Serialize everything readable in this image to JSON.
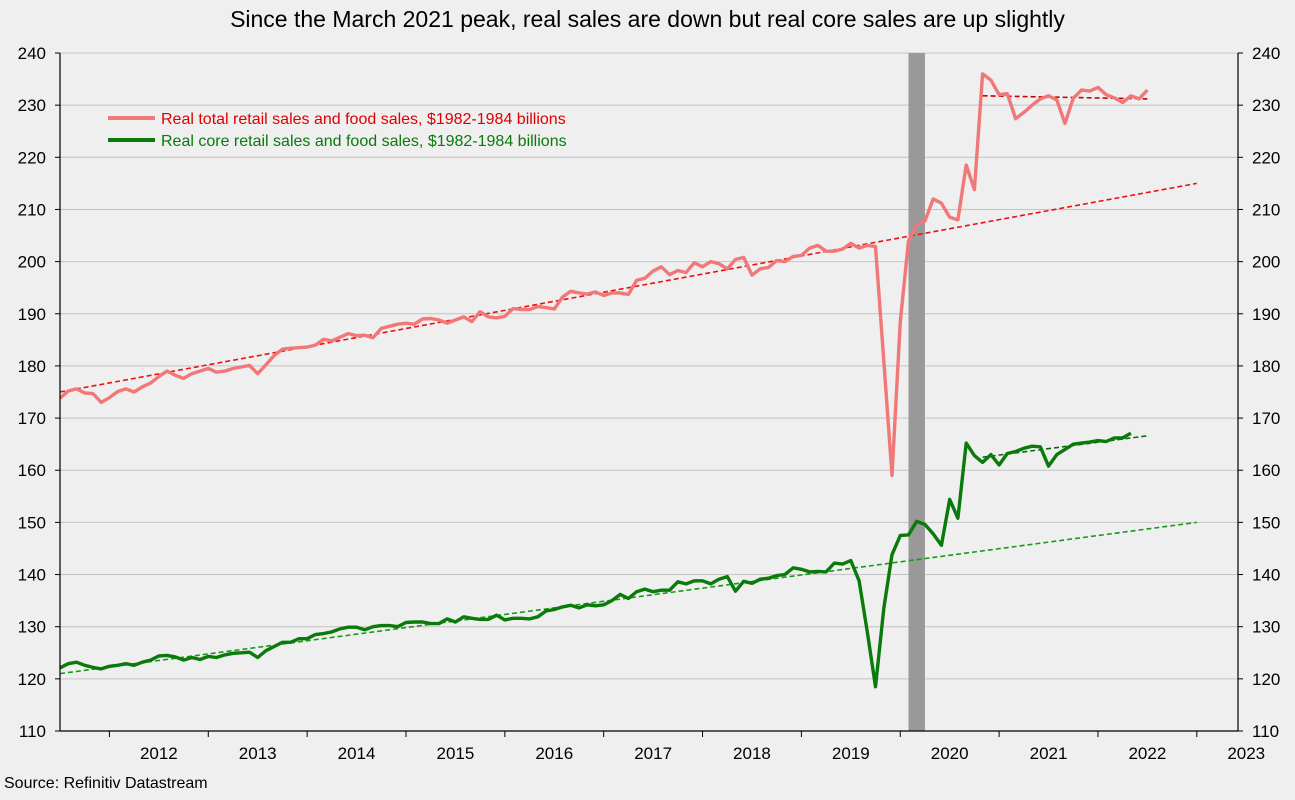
{
  "title": "Since the March 2021 peak, real sales are down but real core sales are up slightly",
  "source": "Source: Refinitiv Datastream",
  "chart_data": {
    "type": "line",
    "title": "Since the March 2021 peak, real sales are down but real core sales are up slightly",
    "ylim": [
      110,
      240
    ],
    "y_ticks": [
      110,
      120,
      130,
      140,
      150,
      160,
      170,
      180,
      190,
      200,
      210,
      220,
      230,
      240
    ],
    "x_tick_labels": [
      "2012",
      "2013",
      "2014",
      "2015",
      "2016",
      "2017",
      "2018",
      "2019",
      "2020",
      "2021",
      "2022",
      "2023"
    ],
    "x_range": [
      "2011-07",
      "2023-06"
    ],
    "grid": "horizontal",
    "legend_position": "top-left",
    "recession_shading": {
      "start": "2020-02",
      "end": "2020-04",
      "color": "#999999"
    },
    "colors": {
      "total": "#f07878",
      "core": "#0a7a0a",
      "total_trend": "#ee1111",
      "core_trend": "#1a9a1a",
      "recession": "#999999"
    },
    "series": [
      {
        "key": "total",
        "name": "Real total retail sales and food sales, $1982-1984 billions",
        "color": "#f07878",
        "points": [
          [
            "2011-07",
            173.8
          ],
          [
            "2011-08",
            175.2
          ],
          [
            "2011-09",
            175.6
          ],
          [
            "2011-10",
            174.8
          ],
          [
            "2011-11",
            174.7
          ],
          [
            "2011-12",
            173.0
          ],
          [
            "2012-01",
            173.9
          ],
          [
            "2012-02",
            175.1
          ],
          [
            "2012-03",
            175.6
          ],
          [
            "2012-04",
            175.0
          ],
          [
            "2012-05",
            176.0
          ],
          [
            "2012-06",
            176.7
          ],
          [
            "2012-07",
            178.0
          ],
          [
            "2012-08",
            179.0
          ],
          [
            "2012-09",
            178.2
          ],
          [
            "2012-10",
            177.6
          ],
          [
            "2012-11",
            178.5
          ],
          [
            "2012-12",
            179.0
          ],
          [
            "2013-01",
            179.5
          ],
          [
            "2013-02",
            178.8
          ],
          [
            "2013-03",
            179.0
          ],
          [
            "2013-04",
            179.5
          ],
          [
            "2013-05",
            179.8
          ],
          [
            "2013-06",
            180.1
          ],
          [
            "2013-07",
            178.5
          ],
          [
            "2013-08",
            180.2
          ],
          [
            "2013-09",
            182.0
          ],
          [
            "2013-10",
            183.2
          ],
          [
            "2013-11",
            183.4
          ],
          [
            "2013-12",
            183.5
          ],
          [
            "2014-01",
            183.6
          ],
          [
            "2014-02",
            184.0
          ],
          [
            "2014-03",
            185.1
          ],
          [
            "2014-04",
            184.8
          ],
          [
            "2014-05",
            185.5
          ],
          [
            "2014-06",
            186.2
          ],
          [
            "2014-07",
            185.8
          ],
          [
            "2014-08",
            185.9
          ],
          [
            "2014-09",
            185.4
          ],
          [
            "2014-10",
            187.2
          ],
          [
            "2014-11",
            187.6
          ],
          [
            "2014-12",
            188.0
          ],
          [
            "2015-01",
            188.2
          ],
          [
            "2015-02",
            188.0
          ],
          [
            "2015-03",
            189.0
          ],
          [
            "2015-04",
            189.1
          ],
          [
            "2015-05",
            188.8
          ],
          [
            "2015-06",
            188.2
          ],
          [
            "2015-07",
            188.8
          ],
          [
            "2015-08",
            189.4
          ],
          [
            "2015-09",
            188.5
          ],
          [
            "2015-10",
            190.4
          ],
          [
            "2015-11",
            189.4
          ],
          [
            "2015-12",
            189.2
          ],
          [
            "2016-01",
            189.5
          ],
          [
            "2016-02",
            191.0
          ],
          [
            "2016-03",
            190.8
          ],
          [
            "2016-04",
            190.8
          ],
          [
            "2016-05",
            191.4
          ],
          [
            "2016-06",
            191.2
          ],
          [
            "2016-07",
            190.9
          ],
          [
            "2016-08",
            193.2
          ],
          [
            "2016-09",
            194.3
          ],
          [
            "2016-10",
            194.0
          ],
          [
            "2016-11",
            193.8
          ],
          [
            "2016-12",
            194.2
          ],
          [
            "2017-01",
            193.5
          ],
          [
            "2017-02",
            194.0
          ],
          [
            "2017-03",
            194.0
          ],
          [
            "2017-04",
            193.7
          ],
          [
            "2017-05",
            196.4
          ],
          [
            "2017-06",
            196.8
          ],
          [
            "2017-07",
            198.2
          ],
          [
            "2017-08",
            199.0
          ],
          [
            "2017-09",
            197.5
          ],
          [
            "2017-10",
            198.3
          ],
          [
            "2017-11",
            197.9
          ],
          [
            "2017-12",
            199.8
          ],
          [
            "2018-01",
            199.0
          ],
          [
            "2018-02",
            200.0
          ],
          [
            "2018-03",
            199.6
          ],
          [
            "2018-04",
            198.6
          ],
          [
            "2018-05",
            200.4
          ],
          [
            "2018-06",
            200.8
          ],
          [
            "2018-07",
            197.4
          ],
          [
            "2018-08",
            198.6
          ],
          [
            "2018-09",
            198.9
          ],
          [
            "2018-10",
            200.2
          ],
          [
            "2018-11",
            200.0
          ],
          [
            "2018-12",
            201.0
          ],
          [
            "2019-01",
            201.2
          ],
          [
            "2019-02",
            202.6
          ],
          [
            "2019-03",
            203.1
          ],
          [
            "2019-04",
            202.0
          ],
          [
            "2019-05",
            202.0
          ],
          [
            "2019-06",
            202.4
          ],
          [
            "2019-07",
            203.5
          ],
          [
            "2019-08",
            202.6
          ],
          [
            "2019-09",
            203.1
          ],
          [
            "2019-10",
            202.9
          ],
          [
            "2019-11",
            181.0
          ],
          [
            "2019-12",
            159.0
          ],
          [
            "2020-01",
            188.5
          ],
          [
            "2020-02",
            204.0
          ],
          [
            "2020-03",
            207.0
          ],
          [
            "2020-04",
            207.8
          ],
          [
            "2020-05",
            212.0
          ],
          [
            "2020-06",
            211.2
          ],
          [
            "2020-07",
            208.5
          ],
          [
            "2020-08",
            208.0
          ],
          [
            "2020-09",
            218.5
          ],
          [
            "2020-10",
            213.8
          ],
          [
            "2020-11",
            236.0
          ],
          [
            "2020-12",
            234.8
          ],
          [
            "2021-01",
            232.0
          ],
          [
            "2021-02",
            232.2
          ],
          [
            "2021-03",
            227.4
          ],
          [
            "2021-04",
            228.6
          ],
          [
            "2021-05",
            230.0
          ],
          [
            "2021-06",
            231.2
          ],
          [
            "2021-07",
            231.8
          ],
          [
            "2021-08",
            231.0
          ],
          [
            "2021-09",
            226.5
          ],
          [
            "2021-10",
            231.3
          ],
          [
            "2021-11",
            232.9
          ],
          [
            "2021-12",
            232.7
          ],
          [
            "2022-01",
            233.4
          ],
          [
            "2022-02",
            232.0
          ],
          [
            "2022-03",
            231.4
          ],
          [
            "2022-04",
            230.5
          ],
          [
            "2022-05",
            231.8
          ],
          [
            "2022-06",
            231.2
          ],
          [
            "2022-07",
            232.9
          ]
        ]
      },
      {
        "key": "core",
        "name": "Real core retail sales and food sales, $1982-1984 billions",
        "color": "#0a7a0a",
        "points": [
          [
            "2011-07",
            122.1
          ],
          [
            "2011-08",
            122.9
          ],
          [
            "2011-09",
            123.2
          ],
          [
            "2011-10",
            122.6
          ],
          [
            "2011-11",
            122.2
          ],
          [
            "2011-12",
            121.9
          ],
          [
            "2012-01",
            122.4
          ],
          [
            "2012-02",
            122.6
          ],
          [
            "2012-03",
            122.9
          ],
          [
            "2012-04",
            122.6
          ],
          [
            "2012-05",
            123.2
          ],
          [
            "2012-06",
            123.6
          ],
          [
            "2012-07",
            124.4
          ],
          [
            "2012-08",
            124.5
          ],
          [
            "2012-09",
            124.2
          ],
          [
            "2012-10",
            123.6
          ],
          [
            "2012-11",
            124.1
          ],
          [
            "2012-12",
            123.7
          ],
          [
            "2013-01",
            124.3
          ],
          [
            "2013-02",
            124.1
          ],
          [
            "2013-03",
            124.6
          ],
          [
            "2013-04",
            124.9
          ],
          [
            "2013-05",
            125.0
          ],
          [
            "2013-06",
            125.1
          ],
          [
            "2013-07",
            124.1
          ],
          [
            "2013-08",
            125.4
          ],
          [
            "2013-09",
            126.2
          ],
          [
            "2013-10",
            127.0
          ],
          [
            "2013-11",
            127.0
          ],
          [
            "2013-12",
            127.7
          ],
          [
            "2014-01",
            127.7
          ],
          [
            "2014-02",
            128.5
          ],
          [
            "2014-03",
            128.7
          ],
          [
            "2014-04",
            129.0
          ],
          [
            "2014-05",
            129.6
          ],
          [
            "2014-06",
            129.9
          ],
          [
            "2014-07",
            129.9
          ],
          [
            "2014-08",
            129.4
          ],
          [
            "2014-09",
            130.0
          ],
          [
            "2014-10",
            130.2
          ],
          [
            "2014-11",
            130.2
          ],
          [
            "2014-12",
            130.0
          ],
          [
            "2015-01",
            130.8
          ],
          [
            "2015-02",
            130.9
          ],
          [
            "2015-03",
            130.9
          ],
          [
            "2015-04",
            130.6
          ],
          [
            "2015-05",
            130.6
          ],
          [
            "2015-06",
            131.5
          ],
          [
            "2015-07",
            130.9
          ],
          [
            "2015-08",
            131.9
          ],
          [
            "2015-09",
            131.6
          ],
          [
            "2015-10",
            131.4
          ],
          [
            "2015-11",
            131.4
          ],
          [
            "2015-12",
            132.2
          ],
          [
            "2016-01",
            131.3
          ],
          [
            "2016-02",
            131.6
          ],
          [
            "2016-03",
            131.6
          ],
          [
            "2016-04",
            131.5
          ],
          [
            "2016-05",
            131.9
          ],
          [
            "2016-06",
            133.0
          ],
          [
            "2016-07",
            133.3
          ],
          [
            "2016-08",
            133.8
          ],
          [
            "2016-09",
            134.1
          ],
          [
            "2016-10",
            133.6
          ],
          [
            "2016-11",
            134.2
          ],
          [
            "2016-12",
            134.0
          ],
          [
            "2017-01",
            134.2
          ],
          [
            "2017-02",
            135.0
          ],
          [
            "2017-03",
            136.2
          ],
          [
            "2017-04",
            135.4
          ],
          [
            "2017-05",
            136.7
          ],
          [
            "2017-06",
            137.2
          ],
          [
            "2017-07",
            136.7
          ],
          [
            "2017-08",
            137.0
          ],
          [
            "2017-09",
            137.0
          ],
          [
            "2017-10",
            138.6
          ],
          [
            "2017-11",
            138.2
          ],
          [
            "2017-12",
            138.8
          ],
          [
            "2018-01",
            138.8
          ],
          [
            "2018-02",
            138.2
          ],
          [
            "2018-03",
            139.1
          ],
          [
            "2018-04",
            139.6
          ],
          [
            "2018-05",
            136.8
          ],
          [
            "2018-06",
            138.7
          ],
          [
            "2018-07",
            138.3
          ],
          [
            "2018-08",
            139.1
          ],
          [
            "2018-09",
            139.3
          ],
          [
            "2018-10",
            139.8
          ],
          [
            "2018-11",
            140.0
          ],
          [
            "2018-12",
            141.3
          ],
          [
            "2019-01",
            141.0
          ],
          [
            "2019-02",
            140.5
          ],
          [
            "2019-03",
            140.6
          ],
          [
            "2019-04",
            140.5
          ],
          [
            "2019-05",
            142.2
          ],
          [
            "2019-06",
            142.0
          ],
          [
            "2019-07",
            142.7
          ],
          [
            "2019-08",
            138.8
          ],
          [
            "2019-09",
            129.0
          ],
          [
            "2019-10",
            118.5
          ],
          [
            "2019-11",
            133.5
          ],
          [
            "2019-12",
            143.8
          ],
          [
            "2020-01",
            147.5
          ],
          [
            "2020-02",
            147.6
          ],
          [
            "2020-03",
            150.2
          ],
          [
            "2020-04",
            149.6
          ],
          [
            "2020-05",
            147.8
          ],
          [
            "2020-06",
            145.6
          ],
          [
            "2020-07",
            154.4
          ],
          [
            "2020-08",
            150.8
          ],
          [
            "2020-09",
            165.2
          ],
          [
            "2020-10",
            162.8
          ],
          [
            "2020-11",
            161.5
          ],
          [
            "2020-12",
            163.0
          ],
          [
            "2021-01",
            161.0
          ],
          [
            "2021-02",
            163.2
          ],
          [
            "2021-03",
            163.6
          ],
          [
            "2021-04",
            164.2
          ],
          [
            "2021-05",
            164.6
          ],
          [
            "2021-06",
            164.5
          ],
          [
            "2021-07",
            160.8
          ],
          [
            "2021-08",
            163.0
          ],
          [
            "2021-09",
            164.0
          ],
          [
            "2021-10",
            165.0
          ],
          [
            "2021-11",
            165.2
          ],
          [
            "2021-12",
            165.4
          ],
          [
            "2022-01",
            165.7
          ],
          [
            "2022-02",
            165.5
          ],
          [
            "2022-03",
            166.2
          ],
          [
            "2022-04",
            166.2
          ],
          [
            "2022-05",
            167.1
          ]
        ]
      }
    ],
    "trend_lines": [
      {
        "key": "total_trend",
        "style": "dashed",
        "color": "#ee1111",
        "from": [
          "2011-07",
          175.0
        ],
        "to": [
          "2023-01",
          215.0
        ]
      },
      {
        "key": "core_trend",
        "style": "dashed",
        "color": "#1a9a1a",
        "from": [
          "2011-07",
          121.0
        ],
        "to": [
          "2023-01",
          150.0
        ]
      },
      {
        "key": "total_flat_trend",
        "style": "dashed",
        "color": "#cc0000",
        "from": [
          "2020-11",
          231.8
        ],
        "to": [
          "2022-07",
          231.2
        ]
      },
      {
        "key": "core_flat_trend",
        "style": "dashed",
        "color": "#0a6a0a",
        "from": [
          "2020-11",
          162.5
        ],
        "to": [
          "2022-07",
          166.6
        ]
      }
    ]
  }
}
